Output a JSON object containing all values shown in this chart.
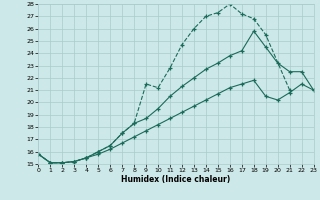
{
  "xlabel": "Humidex (Indice chaleur)",
  "bg_color": "#cde8e8",
  "grid_color": "#aacccc",
  "line_color": "#1a6b5a",
  "xlim": [
    0,
    23
  ],
  "ylim": [
    15,
    28
  ],
  "xticks": [
    0,
    1,
    2,
    3,
    4,
    5,
    6,
    7,
    8,
    9,
    10,
    11,
    12,
    13,
    14,
    15,
    16,
    17,
    18,
    19,
    20,
    21,
    22,
    23
  ],
  "yticks": [
    15,
    16,
    17,
    18,
    19,
    20,
    21,
    22,
    23,
    24,
    25,
    26,
    27,
    28
  ],
  "line1_x": [
    0,
    1,
    2,
    3,
    4,
    5,
    6,
    7,
    8,
    9,
    10,
    11,
    12,
    13,
    14,
    15,
    16,
    17,
    18,
    19,
    20,
    21
  ],
  "line1_y": [
    15.8,
    15.1,
    15.1,
    15.2,
    15.5,
    16.0,
    16.5,
    17.5,
    18.3,
    21.5,
    21.2,
    22.8,
    24.7,
    26.0,
    27.0,
    27.3,
    28.0,
    27.2,
    26.8,
    25.5,
    null,
    21.0
  ],
  "line2_x": [
    0,
    1,
    2,
    3,
    4,
    5,
    6,
    7,
    8,
    9,
    10,
    11,
    12,
    13,
    14,
    15,
    16,
    17,
    18,
    19,
    20,
    21,
    22,
    23
  ],
  "line2_y": [
    15.8,
    15.1,
    15.1,
    15.2,
    15.5,
    16.0,
    16.5,
    17.5,
    18.3,
    18.7,
    19.5,
    20.5,
    21.3,
    22.0,
    22.7,
    23.2,
    23.8,
    24.2,
    25.8,
    24.5,
    23.2,
    22.5,
    22.5,
    21.0
  ],
  "line3_x": [
    0,
    1,
    2,
    3,
    4,
    5,
    6,
    7,
    8,
    9,
    10,
    11,
    12,
    13,
    14,
    15,
    16,
    17,
    18,
    19,
    20,
    21,
    22,
    23
  ],
  "line3_y": [
    15.8,
    15.1,
    15.1,
    15.2,
    15.5,
    15.8,
    16.2,
    16.7,
    17.2,
    17.7,
    18.2,
    18.7,
    19.2,
    19.7,
    20.2,
    20.7,
    21.2,
    21.5,
    21.8,
    20.5,
    20.2,
    20.8,
    21.5,
    21.0
  ]
}
